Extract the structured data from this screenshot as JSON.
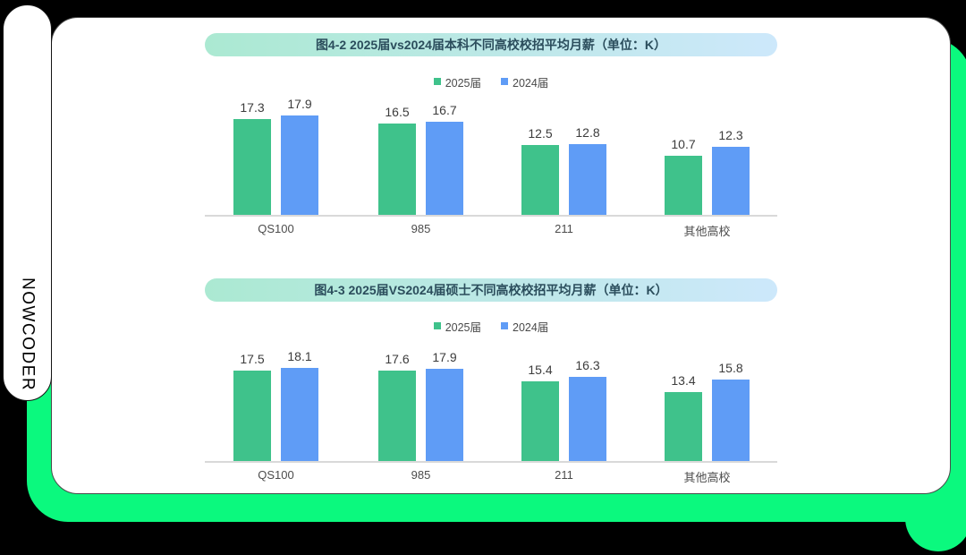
{
  "page": {
    "background_color": "#000000",
    "brand_vertical_text": "NOWCODER"
  },
  "colors": {
    "accent_green": "#0bf97e",
    "bar_green": "#3fc28b",
    "bar_blue": "#5f9cf6",
    "banner_gradient_start": "#abe9d2",
    "banner_gradient_end": "#cde8fb",
    "banner_text": "#2b4d5c",
    "axis_line": "#d9d9d9"
  },
  "chart_data": [
    {
      "type": "bar",
      "title": "图4-2 2025届vs2024届本科不同高校校招平均月薪（单位：K）",
      "unit": "K",
      "categories": [
        "QS100",
        "985",
        "211",
        "其他高校"
      ],
      "series": [
        {
          "name": "2025届",
          "color": "#3fc28b",
          "values": [
            17.3,
            16.5,
            12.5,
            10.7
          ]
        },
        {
          "name": "2024届",
          "color": "#5f9cf6",
          "values": [
            17.9,
            16.7,
            12.8,
            12.3
          ]
        }
      ],
      "ylim": [
        0,
        20
      ],
      "grid": false,
      "data_labels": true,
      "legend_position": "top"
    },
    {
      "type": "bar",
      "title": "图4-3 2025届VS2024届硕士不同高校校招平均月薪（单位：K）",
      "unit": "K",
      "categories": [
        "QS100",
        "985",
        "211",
        "其他高校"
      ],
      "series": [
        {
          "name": "2025届",
          "color": "#3fc28b",
          "values": [
            17.5,
            17.6,
            15.4,
            13.4
          ]
        },
        {
          "name": "2024届",
          "color": "#5f9cf6",
          "values": [
            18.1,
            17.9,
            16.3,
            15.8
          ]
        }
      ],
      "ylim": [
        0,
        20
      ],
      "grid": false,
      "data_labels": true,
      "legend_position": "top"
    }
  ]
}
